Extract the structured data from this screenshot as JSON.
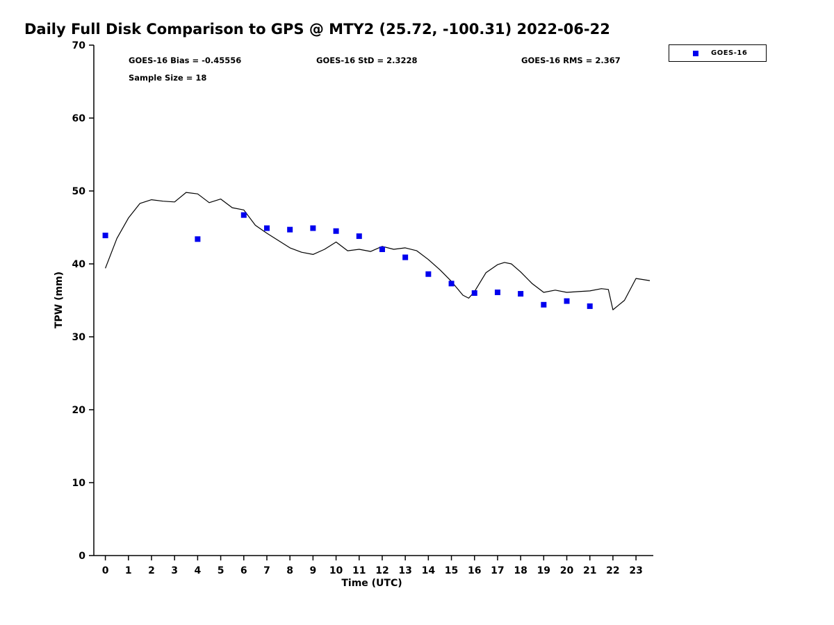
{
  "title": "Daily Full Disk Comparison to GPS @ MTY2 (25.72, -100.31) 2022-06-22",
  "annotations": {
    "bias": "GOES-16 Bias = -0.45556",
    "std": "GOES-16 StD = 2.3228",
    "rms": "GOES-16 RMS = 2.367",
    "sample_size": "Sample Size = 18"
  },
  "legend": {
    "position": "top-right",
    "entries": [
      {
        "label": "GOES-16",
        "marker": "square",
        "color": "#0000ee"
      }
    ]
  },
  "chart_data": {
    "type": "line+scatter",
    "title": "Daily Full Disk Comparison to GPS @ MTY2 (25.72, -100.31) 2022-06-22",
    "xlabel": "Time (UTC)",
    "ylabel": "TPW (mm)",
    "xlim": [
      -0.5,
      23.75
    ],
    "ylim": [
      0,
      70
    ],
    "xticks": [
      0,
      1,
      2,
      3,
      4,
      5,
      6,
      7,
      8,
      9,
      10,
      11,
      12,
      13,
      14,
      15,
      16,
      17,
      18,
      19,
      20,
      21,
      22,
      23
    ],
    "yticks": [
      0,
      10,
      20,
      30,
      40,
      50,
      60,
      70
    ],
    "grid": false,
    "series": [
      {
        "name": "GPS",
        "type": "line",
        "color": "#000000",
        "x": [
          0,
          0.5,
          1,
          1.5,
          2,
          2.5,
          3,
          3.5,
          4,
          4.5,
          5,
          5.5,
          6,
          6.5,
          7,
          7.5,
          8,
          8.5,
          9,
          9.5,
          10,
          10.5,
          11,
          11.5,
          12,
          12.5,
          13,
          13.5,
          14,
          14.5,
          15,
          15.5,
          15.75,
          16,
          16.5,
          17,
          17.3,
          17.6,
          18,
          18.5,
          19,
          19.5,
          20,
          20.5,
          21,
          21.5,
          21.8,
          22,
          22.5,
          23,
          23.6
        ],
        "y": [
          39.4,
          43.5,
          46.3,
          48.3,
          48.8,
          48.6,
          48.5,
          49.8,
          49.6,
          48.4,
          48.9,
          47.7,
          47.4,
          45.3,
          44.2,
          43.2,
          42.2,
          41.6,
          41.3,
          42.0,
          43.0,
          41.8,
          42.0,
          41.7,
          42.4,
          42.0,
          42.2,
          41.8,
          40.6,
          39.2,
          37.6,
          35.7,
          35.3,
          36.2,
          38.8,
          39.9,
          40.2,
          40.0,
          38.9,
          37.3,
          36.1,
          36.4,
          36.1,
          36.2,
          36.3,
          36.6,
          36.5,
          33.7,
          35.0,
          38.0,
          37.7
        ]
      },
      {
        "name": "GOES-16",
        "type": "scatter",
        "color": "#0000ee",
        "x": [
          0,
          4,
          6,
          7,
          8,
          9,
          10,
          11,
          12,
          13,
          14,
          15,
          16,
          17,
          18,
          19,
          20,
          21
        ],
        "y": [
          43.9,
          43.4,
          46.7,
          44.9,
          44.7,
          44.9,
          44.5,
          43.8,
          42.0,
          40.9,
          38.6,
          37.3,
          36.0,
          36.1,
          35.9,
          34.4,
          34.9,
          34.2
        ]
      }
    ]
  }
}
